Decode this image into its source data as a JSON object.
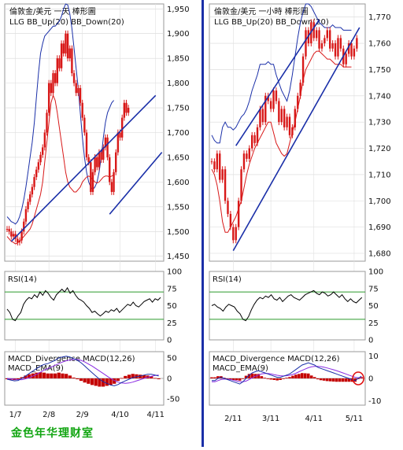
{
  "footer_text": "金色年华理财室",
  "colors": {
    "candle": "#d81818",
    "band": "#1a2fa8",
    "trend": "#1a2fa8",
    "rsi_line": "#000000",
    "rsi_guides": "#2a9a2a",
    "macd_fast": "#1a2fa8",
    "macd_slow": "#8a2be2",
    "hist": "#c40000",
    "highlight": "#e01010"
  },
  "chart_data": [
    {
      "id": "left",
      "type": "candlestick",
      "title": "倫敦金/美元 一天 棒形圖",
      "legend": "LLG   BB_Up(20)   BB_Down(20)",
      "y_ticks": [
        "1,950",
        "1,900",
        "1,850",
        "1,800",
        "1,750",
        "1,700",
        "1,650",
        "1,600",
        "1,550",
        "1,500",
        "1,450"
      ],
      "ylim": [
        1440,
        1960
      ],
      "x_labels": [
        "1/7",
        "2/8",
        "2/9",
        "4/10",
        "4/11"
      ],
      "x_label_index": [
        4,
        20,
        36,
        54,
        71
      ],
      "closes": [
        1505,
        1500,
        1490,
        1495,
        1485,
        1478,
        1482,
        1500,
        1520,
        1545,
        1560,
        1575,
        1590,
        1610,
        1625,
        1640,
        1655,
        1670,
        1700,
        1740,
        1800,
        1780,
        1820,
        1800,
        1850,
        1830,
        1880,
        1860,
        1900,
        1850,
        1870,
        1820,
        1800,
        1780,
        1790,
        1760,
        1730,
        1700,
        1650,
        1640,
        1580,
        1620,
        1650,
        1630,
        1660,
        1645,
        1670,
        1690,
        1650,
        1600,
        1580,
        1620,
        1660,
        1700,
        1690,
        1730,
        1760,
        1740,
        1750
      ],
      "bb_up": [
        1530,
        1525,
        1520,
        1518,
        1515,
        1520,
        1530,
        1545,
        1565,
        1590,
        1620,
        1650,
        1680,
        1720,
        1770,
        1820,
        1860,
        1880,
        1895,
        1900,
        1905,
        1910,
        1915,
        1915,
        1920,
        1925,
        1935,
        1950,
        1960,
        1958,
        1940,
        1910,
        1870,
        1830,
        1790,
        1740,
        1690,
        1650,
        1620,
        1600,
        1590,
        1585,
        1590,
        1600,
        1620,
        1650,
        1690,
        1720,
        1740,
        1750,
        1760,
        1765
      ],
      "bb_down": [
        1490,
        1485,
        1480,
        1478,
        1475,
        1477,
        1480,
        1485,
        1490,
        1495,
        1500,
        1505,
        1515,
        1530,
        1545,
        1560,
        1575,
        1600,
        1640,
        1680,
        1720,
        1760,
        1775,
        1765,
        1740,
        1710,
        1680,
        1650,
        1620,
        1600,
        1590,
        1585,
        1580,
        1580,
        1585,
        1590,
        1600,
        1605,
        1610,
        1612,
        1610,
        1605,
        1600,
        1598,
        1600,
        1605,
        1610,
        1612,
        1612,
        1610,
        1612,
        1615
      ],
      "trendlines": [
        {
          "from": [
            2,
            1480
          ],
          "to": [
            71,
            1775
          ]
        },
        {
          "from": [
            49,
            1535
          ],
          "to": [
            74,
            1660
          ]
        }
      ],
      "rsi": {
        "title": "RSI(14)",
        "y_ticks": [
          "100",
          "75",
          "50",
          "25",
          "0"
        ],
        "guides": [
          70,
          30
        ],
        "values": [
          45,
          40,
          30,
          28,
          35,
          40,
          52,
          58,
          62,
          60,
          66,
          62,
          70,
          65,
          72,
          68,
          62,
          58,
          66,
          70,
          74,
          70,
          76,
          68,
          72,
          65,
          60,
          58,
          55,
          50,
          46,
          40,
          42,
          38,
          35,
          38,
          42,
          40,
          44,
          42,
          46,
          40,
          44,
          48,
          52,
          50,
          55,
          50,
          48,
          52,
          56,
          58,
          60,
          55,
          60,
          58,
          62
        ]
      },
      "macd": {
        "title": "MACD_Divergence   MACD(12,26)",
        "ema_label": "MACD_EMA(9)",
        "y_ticks": [
          "50",
          "0",
          "-50"
        ],
        "ylim": [
          -65,
          65
        ],
        "macd": [
          -2,
          -4,
          -6,
          -5,
          0,
          6,
          12,
          18,
          24,
          30,
          34,
          36,
          40,
          44,
          50,
          52,
          54,
          52,
          48,
          44,
          38,
          30,
          22,
          14,
          6,
          -2,
          -8,
          -12,
          -16,
          -18,
          -15,
          -10,
          -6,
          -2,
          2,
          4,
          6,
          8,
          10,
          10,
          8,
          6
        ],
        "ema": [
          0,
          -1,
          -2,
          -3,
          -3,
          -1,
          2,
          6,
          10,
          15,
          20,
          24,
          28,
          32,
          36,
          40,
          43,
          45,
          46,
          46,
          44,
          40,
          35,
          30,
          24,
          18,
          12,
          6,
          0,
          -5,
          -9,
          -11,
          -12,
          -11,
          -9,
          -6,
          -3,
          0,
          3,
          5,
          7,
          8
        ],
        "hist": [
          -2,
          -3,
          -4,
          -2,
          3,
          7,
          10,
          12,
          14,
          15,
          14,
          12,
          12,
          12,
          14,
          12,
          11,
          7,
          2,
          -2,
          -6,
          -10,
          -13,
          -16,
          -18,
          -20,
          -20,
          -18,
          -16,
          -13,
          -6,
          1,
          6,
          9,
          11,
          10,
          9,
          8,
          7,
          5,
          1,
          -2
        ]
      }
    },
    {
      "id": "right",
      "type": "candlestick",
      "title": "倫敦金/美元 一小時 棒形圖",
      "legend": "LLG   BB_Up(20)   BB_Down(20)",
      "y_ticks": [
        "1,770",
        "1,760",
        "1,750",
        "1,740",
        "1,730",
        "1,720",
        "1,710",
        "1,700",
        "1,690",
        "1,680"
      ],
      "ylim": [
        1677,
        1775
      ],
      "x_labels": [
        "2/11",
        "3/11",
        "4/11",
        "5/11"
      ],
      "x_label_index": [
        8,
        22,
        38,
        53
      ],
      "closes": [
        1715,
        1712,
        1718,
        1708,
        1712,
        1700,
        1695,
        1690,
        1685,
        1690,
        1700,
        1712,
        1718,
        1716,
        1720,
        1725,
        1722,
        1728,
        1735,
        1730,
        1740,
        1738,
        1735,
        1742,
        1738,
        1730,
        1735,
        1728,
        1732,
        1725,
        1728,
        1735,
        1740,
        1745,
        1755,
        1765,
        1760,
        1768,
        1762,
        1765,
        1758,
        1760,
        1762,
        1765,
        1758,
        1760,
        1755,
        1762,
        1758,
        1752,
        1756,
        1760,
        1755,
        1758,
        1762
      ],
      "bb_up": [
        1725,
        1723,
        1722,
        1722,
        1728,
        1730,
        1728,
        1728,
        1727,
        1728,
        1730,
        1732,
        1733,
        1735,
        1738,
        1742,
        1745,
        1748,
        1752,
        1752,
        1752,
        1753,
        1752,
        1752,
        1748,
        1745,
        1742,
        1740,
        1738,
        1742,
        1748,
        1755,
        1762,
        1768,
        1772,
        1775,
        1775,
        1774,
        1772,
        1770,
        1768,
        1767,
        1766,
        1766,
        1766,
        1767,
        1766,
        1766,
        1766,
        1765,
        1765,
        1765,
        1765
      ],
      "bb_down": [
        1712,
        1710,
        1706,
        1700,
        1692,
        1688,
        1688,
        1690,
        1692,
        1694,
        1697,
        1700,
        1705,
        1710,
        1714,
        1717,
        1720,
        1722,
        1724,
        1726,
        1728,
        1730,
        1730,
        1726,
        1722,
        1720,
        1718,
        1717,
        1718,
        1722,
        1726,
        1730,
        1735,
        1740,
        1746,
        1750,
        1752,
        1754,
        1756,
        1757,
        1757,
        1756,
        1755,
        1754,
        1754,
        1753,
        1752,
        1752,
        1752,
        1751,
        1751,
        1751,
        1751
      ],
      "trendlines": [
        {
          "from": [
            8,
            1681
          ],
          "to": [
            55,
            1766
          ]
        },
        {
          "from": [
            9,
            1721
          ],
          "to": [
            40,
            1769
          ]
        }
      ],
      "rsi": {
        "title": "RSI(14)",
        "y_ticks": [
          "100",
          "75",
          "50",
          "25",
          "0"
        ],
        "guides": [
          70,
          30
        ],
        "values": [
          50,
          52,
          48,
          46,
          42,
          48,
          52,
          50,
          48,
          42,
          38,
          30,
          28,
          34,
          44,
          52,
          58,
          62,
          60,
          64,
          62,
          66,
          60,
          58,
          62,
          56,
          60,
          64,
          66,
          62,
          60,
          58,
          62,
          66,
          68,
          70,
          72,
          68,
          66,
          70,
          68,
          64,
          66,
          70,
          66,
          62,
          66,
          60,
          56,
          60,
          56,
          54,
          58,
          62
        ]
      },
      "macd": {
        "title": "MACD_Divergence   MACD(12,26)",
        "ema_label": "MACD_EMA(9)",
        "y_ticks": [
          "10",
          "0",
          "-10"
        ],
        "ylim": [
          -12,
          12
        ],
        "macd": [
          -1,
          -1,
          0,
          0.5,
          0,
          -0.5,
          -1,
          -1.5,
          -2,
          -2.5,
          -1.5,
          0,
          1.5,
          2.5,
          3,
          3.5,
          3,
          2.5,
          2,
          1.5,
          1,
          0.5,
          0.5,
          1,
          1.5,
          2,
          3,
          4,
          5,
          6,
          6.5,
          7,
          6.5,
          6,
          5,
          4.5,
          4,
          3.5,
          3,
          2.5,
          2,
          1.5,
          1,
          0.5,
          0,
          -0.5,
          -1,
          0,
          1
        ],
        "ema": [
          -1.5,
          -1.5,
          -1,
          -0.5,
          -0.3,
          -0.3,
          -0.5,
          -0.8,
          -1.2,
          -1.5,
          -1.5,
          -1.2,
          -0.5,
          0.3,
          1,
          1.5,
          2,
          2.2,
          2.2,
          2,
          1.7,
          1.4,
          1.2,
          1.1,
          1.2,
          1.4,
          1.8,
          2.3,
          3,
          3.6,
          4.2,
          4.8,
          5.2,
          5.4,
          5.4,
          5.3,
          5,
          4.7,
          4.3,
          3.9,
          3.5,
          3,
          2.5,
          2,
          1.5,
          1,
          0.5,
          0.3,
          0.4
        ],
        "hist": [
          0.5,
          0.5,
          1,
          1,
          0.3,
          -0.2,
          -0.5,
          -0.7,
          -0.8,
          -1,
          0,
          1.2,
          2,
          2.2,
          2,
          2,
          1,
          0.3,
          -0.2,
          -0.5,
          -0.7,
          -0.9,
          -0.7,
          -0.1,
          0.3,
          0.6,
          1.2,
          1.7,
          2,
          2.4,
          2.3,
          2.2,
          1.3,
          0.6,
          -0.4,
          -0.8,
          -1,
          -1.2,
          -1.3,
          -1.4,
          -1.5,
          -1.5,
          -1.5,
          -1.5,
          -1.5,
          -1.5,
          -1.5,
          -0.3,
          0.6
        ],
        "highlight_index": 47
      }
    }
  ]
}
